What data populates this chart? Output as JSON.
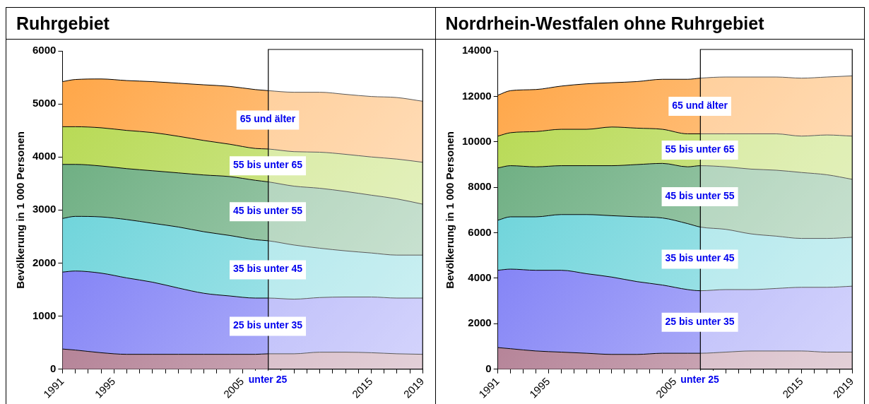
{
  "chart_data": [
    {
      "type": "area",
      "title": "Ruhrgebiet",
      "ylabel": "Bevölkerung in 1 000 Personen",
      "stacked": true,
      "grid": false,
      "legend": false,
      "x": [
        1991,
        1992,
        1994,
        1996,
        1998,
        2000,
        2002,
        2004,
        2006,
        2007,
        2009,
        2011,
        2013,
        2015,
        2017,
        2019
      ],
      "xlim": [
        1991,
        2019
      ],
      "xticks": [
        1991,
        {
          "value": 1992,
          "label": null
        },
        {
          "value": 1993,
          "label": null
        },
        {
          "value": 1994,
          "label": null
        },
        1995,
        {
          "value": 1996,
          "label": null
        },
        {
          "value": 1997,
          "label": null
        },
        {
          "value": 1998,
          "label": null
        },
        {
          "value": 1999,
          "label": null
        },
        {
          "value": 2000,
          "label": null
        },
        {
          "value": 2001,
          "label": null
        },
        {
          "value": 2002,
          "label": null
        },
        {
          "value": 2003,
          "label": null
        },
        {
          "value": 2004,
          "label": null
        },
        2005,
        {
          "value": 2006,
          "label": null
        },
        {
          "value": 2007,
          "label": null
        },
        {
          "value": 2008,
          "label": null
        },
        {
          "value": 2009,
          "label": null
        },
        {
          "value": 2010,
          "label": null
        },
        {
          "value": 2011,
          "label": null
        },
        {
          "value": 2012,
          "label": null
        },
        {
          "value": 2013,
          "label": null
        },
        {
          "value": 2014,
          "label": null
        },
        2015,
        {
          "value": 2016,
          "label": null
        },
        {
          "value": 2017,
          "label": null
        },
        {
          "value": 2018,
          "label": null
        },
        2019
      ],
      "ylim": [
        0,
        6000
      ],
      "yticks": [
        0,
        1000,
        2000,
        3000,
        4000,
        5000,
        6000
      ],
      "bands": [
        {
          "axis": "x",
          "from": 2007,
          "to": 2019,
          "color": "#ffffff"
        }
      ],
      "series": [
        {
          "name": "unter 25",
          "color": "#a0607a",
          "values": [
            380,
            360,
            310,
            280,
            280,
            280,
            280,
            280,
            280,
            290,
            290,
            320,
            320,
            310,
            290,
            280
          ]
        },
        {
          "name": "25 bis unter 35",
          "color": "#6c6cf4",
          "values": [
            1450,
            1490,
            1500,
            1440,
            1360,
            1250,
            1150,
            1100,
            1060,
            1050,
            1030,
            1030,
            1040,
            1050,
            1050,
            1060
          ]
        },
        {
          "name": "35 bis unter 45",
          "color": "#5ccfd6",
          "values": [
            1010,
            1030,
            1060,
            1100,
            1110,
            1150,
            1160,
            1140,
            1100,
            1080,
            1020,
            930,
            870,
            830,
            810,
            810
          ]
        },
        {
          "name": "45 bis unter 55",
          "color": "#62a878",
          "values": [
            1020,
            980,
            960,
            960,
            990,
            1020,
            1070,
            1110,
            1120,
            1110,
            1110,
            1130,
            1120,
            1090,
            1060,
            960
          ]
        },
        {
          "name": "55 bis unter 65",
          "color": "#b4d84c",
          "values": [
            710,
            710,
            720,
            720,
            720,
            690,
            650,
            610,
            600,
            620,
            650,
            680,
            700,
            720,
            750,
            790
          ]
        },
        {
          "name": "65 und älter",
          "color": "#ffa545",
          "values": [
            850,
            890,
            920,
            940,
            960,
            1000,
            1050,
            1090,
            1110,
            1100,
            1120,
            1130,
            1130,
            1140,
            1160,
            1150
          ]
        }
      ]
    },
    {
      "type": "area",
      "title": "Nordrhein-Westfalen ohne Ruhrgebiet",
      "ylabel": "Bevölkerung in 1 000 Personen",
      "stacked": true,
      "grid": false,
      "legend": false,
      "x": [
        1991,
        1992,
        1994,
        1996,
        1998,
        2000,
        2002,
        2004,
        2006,
        2007,
        2009,
        2011,
        2013,
        2015,
        2017,
        2019
      ],
      "xlim": [
        1991,
        2019
      ],
      "xticks": [
        1991,
        {
          "value": 1992,
          "label": null
        },
        {
          "value": 1993,
          "label": null
        },
        {
          "value": 1994,
          "label": null
        },
        1995,
        {
          "value": 1996,
          "label": null
        },
        {
          "value": 1997,
          "label": null
        },
        {
          "value": 1998,
          "label": null
        },
        {
          "value": 1999,
          "label": null
        },
        {
          "value": 2000,
          "label": null
        },
        {
          "value": 2001,
          "label": null
        },
        {
          "value": 2002,
          "label": null
        },
        {
          "value": 2003,
          "label": null
        },
        {
          "value": 2004,
          "label": null
        },
        2005,
        {
          "value": 2006,
          "label": null
        },
        {
          "value": 2007,
          "label": null
        },
        {
          "value": 2008,
          "label": null
        },
        {
          "value": 2009,
          "label": null
        },
        {
          "value": 2010,
          "label": null
        },
        {
          "value": 2011,
          "label": null
        },
        {
          "value": 2012,
          "label": null
        },
        {
          "value": 2013,
          "label": null
        },
        {
          "value": 2014,
          "label": null
        },
        2015,
        {
          "value": 2016,
          "label": null
        },
        {
          "value": 2017,
          "label": null
        },
        {
          "value": 2018,
          "label": null
        },
        2019
      ],
      "ylim": [
        0,
        14000
      ],
      "yticks": [
        0,
        2000,
        4000,
        6000,
        8000,
        10000,
        12000,
        14000
      ],
      "bands": [
        {
          "axis": "x",
          "from": 2007,
          "to": 2019,
          "color": "#ffffff"
        }
      ],
      "series": [
        {
          "name": "unter 25",
          "color": "#a0607a",
          "values": [
            950,
            900,
            800,
            750,
            700,
            650,
            650,
            700,
            700,
            700,
            750,
            800,
            800,
            800,
            750,
            750
          ]
        },
        {
          "name": "25 bis unter 35",
          "color": "#6c6cf4",
          "values": [
            3400,
            3500,
            3550,
            3600,
            3500,
            3400,
            3200,
            3000,
            2800,
            2750,
            2750,
            2700,
            2750,
            2800,
            2850,
            2900
          ]
        },
        {
          "name": "35 bis unter 45",
          "color": "#5ccfd6",
          "values": [
            2200,
            2300,
            2350,
            2450,
            2600,
            2700,
            2850,
            2950,
            2900,
            2800,
            2650,
            2450,
            2300,
            2150,
            2150,
            2150
          ]
        },
        {
          "name": "45 bis unter 55",
          "color": "#62a878",
          "values": [
            2300,
            2250,
            2200,
            2150,
            2150,
            2200,
            2300,
            2400,
            2500,
            2700,
            2750,
            2850,
            2900,
            2900,
            2800,
            2550
          ]
        },
        {
          "name": "55 bis unter 65",
          "color": "#b4d84c",
          "values": [
            1400,
            1450,
            1550,
            1600,
            1600,
            1700,
            1600,
            1500,
            1450,
            1400,
            1450,
            1550,
            1600,
            1600,
            1750,
            1900
          ]
        },
        {
          "name": "65 und älter",
          "color": "#ffa545",
          "values": [
            1800,
            1850,
            1850,
            1900,
            2000,
            1950,
            2050,
            2200,
            2400,
            2450,
            2500,
            2500,
            2500,
            2550,
            2550,
            2650
          ]
        }
      ]
    }
  ]
}
